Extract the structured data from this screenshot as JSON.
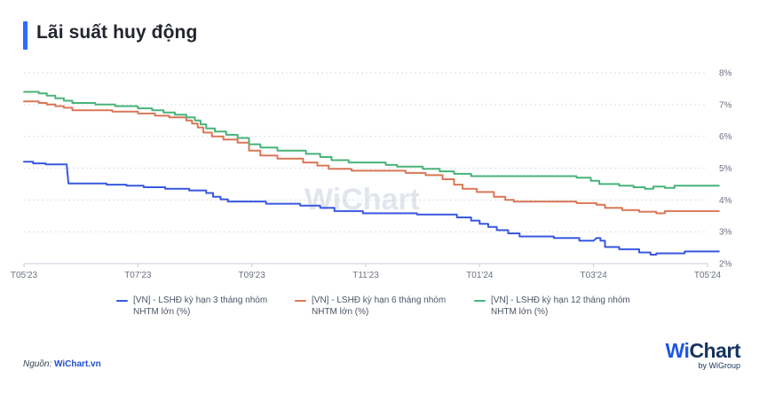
{
  "title": "Lãi suất huy động",
  "source": {
    "label": "Nguồn:",
    "site": "WiChart.vn"
  },
  "brand": {
    "prefix": "Wi",
    "suffix": "Chart",
    "by": "by WiGroup"
  },
  "watermark": "WiChart",
  "colors": {
    "accent": "#2f6bff",
    "series_3m": "#3858df",
    "series_6m": "#d97757",
    "series_12m": "#48b37a",
    "grid": "#d9dee7",
    "axis_text": "#6b7280"
  },
  "chart_data": {
    "type": "line",
    "title": "Lãi suất huy động",
    "xlabel": "",
    "ylabel": "",
    "x_start": "2023-05",
    "x_end": "2024-05",
    "x_ticks": [
      {
        "label": "T05'23",
        "pos": 0
      },
      {
        "label": "T07'23",
        "pos": 2
      },
      {
        "label": "T09'23",
        "pos": 4
      },
      {
        "label": "T11'23",
        "pos": 6
      },
      {
        "label": "T01'24",
        "pos": 8
      },
      {
        "label": "T03'24",
        "pos": 10
      },
      {
        "label": "T05'24",
        "pos": 12
      }
    ],
    "y_ticks": [
      "2%",
      "3%",
      "4%",
      "5%",
      "6%",
      "7%",
      "8%"
    ],
    "ylim": [
      2,
      8
    ],
    "xlim": [
      0,
      12
    ],
    "grid": true,
    "legend": "bottom",
    "series": [
      {
        "name": "[VN] - LSHĐ kỳ hạn 3 tháng nhóm NHTM lớn (%)",
        "color": "#3858df",
        "points": [
          [
            0.0,
            5.2
          ],
          [
            0.16,
            5.2
          ],
          [
            0.16,
            5.15
          ],
          [
            0.38,
            5.15
          ],
          [
            0.38,
            5.12
          ],
          [
            0.75,
            5.12
          ],
          [
            0.78,
            4.52
          ],
          [
            1.45,
            4.52
          ],
          [
            1.45,
            4.48
          ],
          [
            1.8,
            4.48
          ],
          [
            1.8,
            4.45
          ],
          [
            2.1,
            4.45
          ],
          [
            2.1,
            4.4
          ],
          [
            2.48,
            4.4
          ],
          [
            2.48,
            4.35
          ],
          [
            2.9,
            4.35
          ],
          [
            2.9,
            4.3
          ],
          [
            3.2,
            4.3
          ],
          [
            3.2,
            4.22
          ],
          [
            3.32,
            4.22
          ],
          [
            3.32,
            4.1
          ],
          [
            3.45,
            4.1
          ],
          [
            3.45,
            4.02
          ],
          [
            3.58,
            4.02
          ],
          [
            3.58,
            3.95
          ],
          [
            4.25,
            3.95
          ],
          [
            4.25,
            3.88
          ],
          [
            4.85,
            3.88
          ],
          [
            4.85,
            3.82
          ],
          [
            5.2,
            3.82
          ],
          [
            5.2,
            3.75
          ],
          [
            5.45,
            3.75
          ],
          [
            5.45,
            3.65
          ],
          [
            5.95,
            3.65
          ],
          [
            5.95,
            3.58
          ],
          [
            6.9,
            3.58
          ],
          [
            6.9,
            3.54
          ],
          [
            7.6,
            3.54
          ],
          [
            7.6,
            3.45
          ],
          [
            7.85,
            3.45
          ],
          [
            7.85,
            3.35
          ],
          [
            8.0,
            3.35
          ],
          [
            8.0,
            3.25
          ],
          [
            8.15,
            3.25
          ],
          [
            8.15,
            3.15
          ],
          [
            8.3,
            3.15
          ],
          [
            8.3,
            3.05
          ],
          [
            8.5,
            3.05
          ],
          [
            8.5,
            2.95
          ],
          [
            8.7,
            2.95
          ],
          [
            8.7,
            2.85
          ],
          [
            9.3,
            2.85
          ],
          [
            9.3,
            2.8
          ],
          [
            9.75,
            2.8
          ],
          [
            9.75,
            2.72
          ],
          [
            10.0,
            2.72
          ],
          [
            10.05,
            2.8
          ],
          [
            10.12,
            2.8
          ],
          [
            10.12,
            2.72
          ],
          [
            10.2,
            2.72
          ],
          [
            10.2,
            2.52
          ],
          [
            10.45,
            2.52
          ],
          [
            10.45,
            2.45
          ],
          [
            10.8,
            2.45
          ],
          [
            10.8,
            2.35
          ],
          [
            11.0,
            2.35
          ],
          [
            11.0,
            2.28
          ],
          [
            11.1,
            2.28
          ],
          [
            11.1,
            2.32
          ],
          [
            11.6,
            2.32
          ],
          [
            11.6,
            2.38
          ],
          [
            12.2,
            2.38
          ]
        ]
      },
      {
        "name": "[VN] - LSHĐ kỳ hạn 6 tháng nhóm NHTM lớn (%)",
        "color": "#d97757",
        "points": [
          [
            0.0,
            7.1
          ],
          [
            0.26,
            7.1
          ],
          [
            0.26,
            7.05
          ],
          [
            0.4,
            7.05
          ],
          [
            0.4,
            7.0
          ],
          [
            0.55,
            7.0
          ],
          [
            0.55,
            6.95
          ],
          [
            0.7,
            6.95
          ],
          [
            0.7,
            6.9
          ],
          [
            0.85,
            6.9
          ],
          [
            0.85,
            6.82
          ],
          [
            1.55,
            6.82
          ],
          [
            1.55,
            6.78
          ],
          [
            2.0,
            6.78
          ],
          [
            2.0,
            6.72
          ],
          [
            2.3,
            6.72
          ],
          [
            2.3,
            6.65
          ],
          [
            2.55,
            6.65
          ],
          [
            2.55,
            6.6
          ],
          [
            2.85,
            6.6
          ],
          [
            2.85,
            6.5
          ],
          [
            2.95,
            6.5
          ],
          [
            2.95,
            6.4
          ],
          [
            3.05,
            6.4
          ],
          [
            3.05,
            6.28
          ],
          [
            3.15,
            6.28
          ],
          [
            3.15,
            6.12
          ],
          [
            3.3,
            6.12
          ],
          [
            3.3,
            6.0
          ],
          [
            3.5,
            6.0
          ],
          [
            3.5,
            5.9
          ],
          [
            3.75,
            5.9
          ],
          [
            3.75,
            5.8
          ],
          [
            3.95,
            5.8
          ],
          [
            3.95,
            5.55
          ],
          [
            4.15,
            5.55
          ],
          [
            4.15,
            5.4
          ],
          [
            4.45,
            5.4
          ],
          [
            4.45,
            5.3
          ],
          [
            4.9,
            5.3
          ],
          [
            4.9,
            5.18
          ],
          [
            5.15,
            5.18
          ],
          [
            5.15,
            5.08
          ],
          [
            5.35,
            5.08
          ],
          [
            5.35,
            4.98
          ],
          [
            5.75,
            4.98
          ],
          [
            5.75,
            4.92
          ],
          [
            6.7,
            4.92
          ],
          [
            6.7,
            4.85
          ],
          [
            7.05,
            4.85
          ],
          [
            7.05,
            4.78
          ],
          [
            7.35,
            4.78
          ],
          [
            7.35,
            4.65
          ],
          [
            7.55,
            4.65
          ],
          [
            7.55,
            4.48
          ],
          [
            7.7,
            4.48
          ],
          [
            7.7,
            4.35
          ],
          [
            7.95,
            4.35
          ],
          [
            7.95,
            4.25
          ],
          [
            8.25,
            4.25
          ],
          [
            8.25,
            4.1
          ],
          [
            8.45,
            4.1
          ],
          [
            8.45,
            4.0
          ],
          [
            8.6,
            4.0
          ],
          [
            8.6,
            3.95
          ],
          [
            9.7,
            3.95
          ],
          [
            9.7,
            3.9
          ],
          [
            10.05,
            3.9
          ],
          [
            10.05,
            3.85
          ],
          [
            10.2,
            3.85
          ],
          [
            10.2,
            3.75
          ],
          [
            10.5,
            3.75
          ],
          [
            10.5,
            3.68
          ],
          [
            10.8,
            3.68
          ],
          [
            10.8,
            3.63
          ],
          [
            11.1,
            3.63
          ],
          [
            11.1,
            3.58
          ],
          [
            11.25,
            3.58
          ],
          [
            11.25,
            3.65
          ],
          [
            12.2,
            3.65
          ]
        ]
      },
      {
        "name": "[VN] - LSHĐ kỳ hạn 12 tháng nhóm NHTM lớn (%)",
        "color": "#48b37a",
        "points": [
          [
            0.0,
            7.4
          ],
          [
            0.26,
            7.4
          ],
          [
            0.26,
            7.35
          ],
          [
            0.4,
            7.35
          ],
          [
            0.4,
            7.28
          ],
          [
            0.55,
            7.28
          ],
          [
            0.55,
            7.2
          ],
          [
            0.7,
            7.2
          ],
          [
            0.7,
            7.12
          ],
          [
            0.85,
            7.12
          ],
          [
            0.85,
            7.05
          ],
          [
            1.25,
            7.05
          ],
          [
            1.25,
            7.0
          ],
          [
            1.6,
            7.0
          ],
          [
            1.6,
            6.95
          ],
          [
            2.0,
            6.95
          ],
          [
            2.0,
            6.88
          ],
          [
            2.25,
            6.88
          ],
          [
            2.25,
            6.82
          ],
          [
            2.45,
            6.82
          ],
          [
            2.45,
            6.75
          ],
          [
            2.65,
            6.75
          ],
          [
            2.65,
            6.68
          ],
          [
            2.85,
            6.68
          ],
          [
            2.85,
            6.6
          ],
          [
            3.0,
            6.6
          ],
          [
            3.0,
            6.5
          ],
          [
            3.1,
            6.5
          ],
          [
            3.1,
            6.38
          ],
          [
            3.2,
            6.38
          ],
          [
            3.2,
            6.25
          ],
          [
            3.35,
            6.25
          ],
          [
            3.35,
            6.15
          ],
          [
            3.55,
            6.15
          ],
          [
            3.55,
            6.05
          ],
          [
            3.75,
            6.05
          ],
          [
            3.75,
            5.95
          ],
          [
            3.95,
            5.95
          ],
          [
            3.95,
            5.75
          ],
          [
            4.15,
            5.75
          ],
          [
            4.15,
            5.65
          ],
          [
            4.45,
            5.65
          ],
          [
            4.45,
            5.55
          ],
          [
            4.95,
            5.55
          ],
          [
            4.95,
            5.45
          ],
          [
            5.2,
            5.45
          ],
          [
            5.2,
            5.35
          ],
          [
            5.4,
            5.35
          ],
          [
            5.4,
            5.25
          ],
          [
            5.7,
            5.25
          ],
          [
            5.7,
            5.18
          ],
          [
            6.35,
            5.18
          ],
          [
            6.35,
            5.1
          ],
          [
            6.55,
            5.1
          ],
          [
            6.55,
            5.05
          ],
          [
            7.0,
            5.05
          ],
          [
            7.0,
            4.98
          ],
          [
            7.3,
            4.98
          ],
          [
            7.3,
            4.9
          ],
          [
            7.55,
            4.9
          ],
          [
            7.55,
            4.82
          ],
          [
            7.85,
            4.82
          ],
          [
            7.85,
            4.75
          ],
          [
            9.7,
            4.75
          ],
          [
            9.7,
            4.7
          ],
          [
            9.95,
            4.7
          ],
          [
            9.95,
            4.6
          ],
          [
            10.1,
            4.6
          ],
          [
            10.1,
            4.5
          ],
          [
            10.45,
            4.5
          ],
          [
            10.45,
            4.45
          ],
          [
            10.7,
            4.45
          ],
          [
            10.7,
            4.4
          ],
          [
            10.9,
            4.4
          ],
          [
            10.9,
            4.35
          ],
          [
            11.05,
            4.35
          ],
          [
            11.05,
            4.42
          ],
          [
            11.25,
            4.42
          ],
          [
            11.25,
            4.38
          ],
          [
            11.42,
            4.38
          ],
          [
            11.42,
            4.45
          ],
          [
            12.2,
            4.45
          ]
        ]
      }
    ]
  }
}
